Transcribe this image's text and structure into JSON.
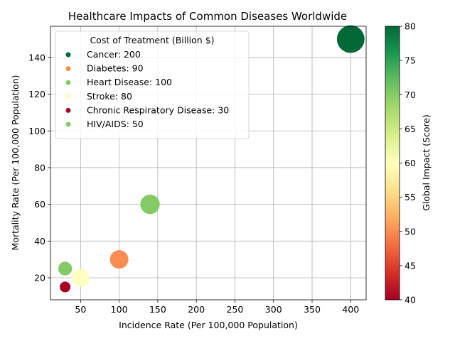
{
  "chart_data": {
    "type": "scatter",
    "title": "Healthcare Impacts of Common Diseases Worldwide",
    "xlabel": "Incidence Rate (Per 100,000 Population)",
    "ylabel": "Mortality Rate (Per 100,000 Population)",
    "xlim": [
      11,
      420
    ],
    "ylim": [
      8,
      157
    ],
    "xticks": [
      50,
      100,
      150,
      200,
      250,
      300,
      350,
      400
    ],
    "yticks": [
      20,
      40,
      60,
      80,
      100,
      120,
      140
    ],
    "grid": true,
    "legend": {
      "title": "Cost of Treatment (Billion $)",
      "placement": "top-left"
    },
    "colorbar": {
      "label": "Global Impact (Score)",
      "colormap": "RdYlGn",
      "range": [
        40,
        80
      ],
      "ticks": [
        40,
        45,
        50,
        55,
        60,
        65,
        70,
        75,
        80
      ]
    },
    "points": [
      {
        "label": "Cancer",
        "cost": 200,
        "legend_text": "Cancer: 200",
        "x": 400,
        "y": 150,
        "impact": 80,
        "color": "#006837"
      },
      {
        "label": "Diabetes",
        "cost": 90,
        "legend_text": "Diabetes: 90",
        "x": 100,
        "y": 30,
        "impact": 50,
        "color": "#f88c51"
      },
      {
        "label": "Heart Disease",
        "cost": 100,
        "legend_text": "Heart Disease: 100",
        "x": 140,
        "y": 60,
        "impact": 68,
        "color": "#84ca66"
      },
      {
        "label": "Stroke",
        "cost": 80,
        "legend_text": "Stroke: 80",
        "x": 50,
        "y": 20,
        "impact": 60,
        "color": "#feffbe"
      },
      {
        "label": "Chronic Respiratory Disease",
        "cost": 30,
        "legend_text": "Chronic Respiratory Disease: 30",
        "x": 30,
        "y": 15,
        "impact": 40,
        "color": "#a50026"
      },
      {
        "label": "HIV/AIDS",
        "cost": 50,
        "legend_text": "HIV/AIDS: 50",
        "x": 30,
        "y": 25,
        "impact": 68,
        "color": "#84ca66"
      }
    ]
  }
}
